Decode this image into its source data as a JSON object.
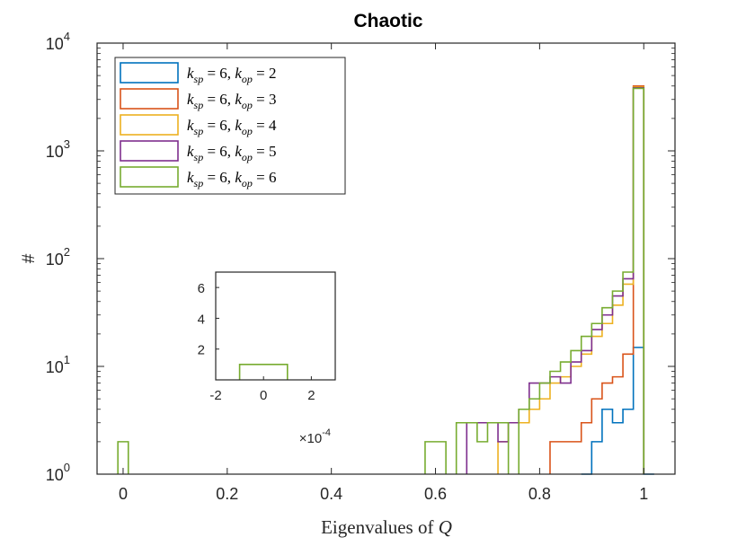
{
  "chart_data": {
    "type": "histogram",
    "title": "Chaotic",
    "xlabel": "Eigenvalues of Q",
    "ylabel": "#",
    "xlim": [
      -0.05,
      1.06
    ],
    "ylim": [
      1,
      10000
    ],
    "yscale": "log",
    "x_ticks": [
      0,
      0.2,
      0.4,
      0.6,
      0.8,
      1
    ],
    "x_tick_labels": [
      "0",
      "0.2",
      "0.4",
      "0.6",
      "0.8",
      "1"
    ],
    "y_ticks": [
      1,
      10,
      100,
      1000,
      10000
    ],
    "y_tick_labels": [
      {
        "base": "10",
        "exp": "0"
      },
      {
        "base": "10",
        "exp": "1"
      },
      {
        "base": "10",
        "exp": "2"
      },
      {
        "base": "10",
        "exp": "3"
      },
      {
        "base": "10",
        "exp": "4"
      }
    ],
    "bin_width": 0.02,
    "legend": {
      "position": "top-left"
    },
    "series": [
      {
        "name": "k_sp = 6, k_op = 2",
        "label_parts": [
          "6",
          "2"
        ],
        "color": "#0072bd",
        "bins": [
          [
            0.88,
            1
          ],
          [
            0.9,
            2
          ],
          [
            0.92,
            4
          ],
          [
            0.94,
            3
          ],
          [
            0.96,
            4
          ],
          [
            0.98,
            15
          ],
          [
            1.0,
            1
          ]
        ]
      },
      {
        "name": "k_sp = 6, k_op = 3",
        "label_parts": [
          "6",
          "3"
        ],
        "color": "#d95319",
        "bins": [
          [
            0.82,
            2
          ],
          [
            0.84,
            2
          ],
          [
            0.86,
            2
          ],
          [
            0.88,
            3
          ],
          [
            0.9,
            5
          ],
          [
            0.92,
            7
          ],
          [
            0.94,
            8
          ],
          [
            0.96,
            13
          ],
          [
            0.98,
            4000
          ]
        ]
      },
      {
        "name": "k_sp = 6, k_op = 4",
        "label_parts": [
          "6",
          "4"
        ],
        "color": "#edb120",
        "bins": [
          [
            0.72,
            2
          ],
          [
            0.74,
            3
          ],
          [
            0.76,
            3
          ],
          [
            0.78,
            4
          ],
          [
            0.8,
            5
          ],
          [
            0.82,
            7
          ],
          [
            0.84,
            8
          ],
          [
            0.86,
            10
          ],
          [
            0.88,
            13
          ],
          [
            0.9,
            19
          ],
          [
            0.92,
            25
          ],
          [
            0.94,
            37
          ],
          [
            0.96,
            58
          ],
          [
            0.98,
            3900
          ]
        ]
      },
      {
        "name": "k_sp = 6, k_op = 5",
        "label_parts": [
          "6",
          "5"
        ],
        "color": "#7e2f8e",
        "bins": [
          [
            0.66,
            3
          ],
          [
            0.68,
            3
          ],
          [
            0.7,
            3
          ],
          [
            0.72,
            2
          ],
          [
            0.74,
            3
          ],
          [
            0.76,
            4
          ],
          [
            0.78,
            7
          ],
          [
            0.8,
            7
          ],
          [
            0.82,
            8
          ],
          [
            0.84,
            7
          ],
          [
            0.86,
            11
          ],
          [
            0.88,
            14
          ],
          [
            0.9,
            22
          ],
          [
            0.92,
            30
          ],
          [
            0.94,
            45
          ],
          [
            0.96,
            65
          ],
          [
            0.98,
            3850
          ]
        ]
      },
      {
        "name": "k_sp = 6, k_op = 6",
        "label_parts": [
          "6",
          "6"
        ],
        "color": "#77ac30",
        "bins": [
          [
            -0.01,
            2
          ],
          [
            0.58,
            2
          ],
          [
            0.6,
            2
          ],
          [
            0.64,
            3
          ],
          [
            0.66,
            3
          ],
          [
            0.68,
            2
          ],
          [
            0.7,
            3
          ],
          [
            0.72,
            3
          ],
          [
            0.76,
            4
          ],
          [
            0.78,
            5
          ],
          [
            0.8,
            7
          ],
          [
            0.82,
            9
          ],
          [
            0.84,
            11
          ],
          [
            0.86,
            14
          ],
          [
            0.88,
            19
          ],
          [
            0.9,
            25
          ],
          [
            0.92,
            35
          ],
          [
            0.94,
            50
          ],
          [
            0.96,
            75
          ],
          [
            0.98,
            3800
          ]
        ]
      }
    ],
    "inset": {
      "xlim": [
        -0.0002,
        0.0003
      ],
      "ylim": [
        0,
        7
      ],
      "x_ticks": [
        -0.0002,
        0,
        0.0002
      ],
      "x_tick_labels": [
        "-2",
        "0",
        "2"
      ],
      "y_ticks": [
        2,
        4,
        6
      ],
      "y_tick_labels": [
        "2",
        "4",
        "6"
      ],
      "multiplier": {
        "base": "×10",
        "exp": "-4"
      },
      "bar": {
        "x0": -0.0001,
        "x1": 0.0001,
        "value": 1,
        "color": "#77ac30"
      }
    }
  }
}
